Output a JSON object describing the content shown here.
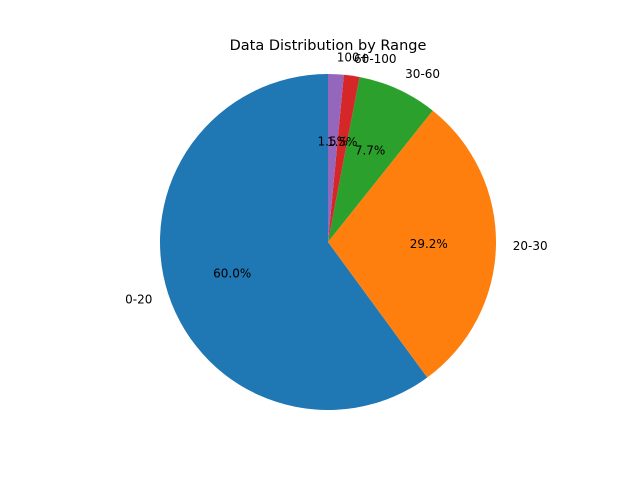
{
  "chart_data": {
    "type": "pie",
    "title": "Data Distribution by Range",
    "categories": [
      "0-20",
      "20-30",
      "30-60",
      "60-100",
      "100+"
    ],
    "values": [
      60.0,
      29.2,
      7.7,
      1.5,
      1.5
    ],
    "value_labels": [
      "60.0%",
      "29.2%",
      "7.7%",
      "1.5%",
      "1.5%"
    ],
    "colors": [
      "#1f77b4",
      "#ff7f0e",
      "#2ca02c",
      "#d62728",
      "#9467bd"
    ],
    "start_angle_deg": 90,
    "direction": "counterclockwise",
    "legend": "none"
  }
}
